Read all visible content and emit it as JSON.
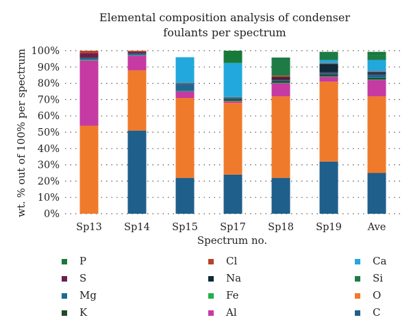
{
  "chart_data": {
    "type": "bar",
    "stacked": true,
    "title_lines": [
      "Elemental composition analysis of condenser",
      "foulants per spectrum"
    ],
    "xlabel": "Spectrum no.",
    "ylabel": "wt. % out of 100% per spectrum",
    "ylim": [
      0,
      100
    ],
    "yticks": [
      "0%",
      "10%",
      "20%",
      "30%",
      "40%",
      "50%",
      "60%",
      "70%",
      "80%",
      "90%",
      "100%"
    ],
    "grid": "horizontal-dotted",
    "legend_position": "bottom",
    "categories": [
      "Sp13",
      "Sp14",
      "Sp15",
      "Sp17",
      "Sp18",
      "Sp19",
      "Ave"
    ],
    "series": [
      {
        "name": "C",
        "color": "#1f5f8b",
        "values": [
          0,
          51,
          22,
          24,
          22,
          32,
          25
        ]
      },
      {
        "name": "O",
        "color": "#f07a2b",
        "values": [
          54,
          37,
          49,
          44,
          50,
          49,
          47
        ]
      },
      {
        "name": "Al",
        "color": "#c63aa3",
        "values": [
          40,
          9,
          4,
          1,
          8,
          3,
          10
        ]
      },
      {
        "name": "Fe",
        "color": "#21b14b",
        "values": [
          0.5,
          0.3,
          0.3,
          0.3,
          0.3,
          0.3,
          0.3
        ]
      },
      {
        "name": "K",
        "color": "#1c4a2a",
        "values": [
          0,
          0,
          0,
          1,
          1,
          1,
          1
        ]
      },
      {
        "name": "Mg",
        "color": "#1b6a93",
        "values": [
          1,
          1,
          4,
          1,
          0.5,
          1,
          2
        ]
      },
      {
        "name": "S",
        "color": "#6b1f4f",
        "values": [
          3,
          1,
          0.5,
          0,
          1,
          0.5,
          0.5
        ]
      },
      {
        "name": "Na",
        "color": "#0f2a38",
        "values": [
          0,
          0,
          0,
          0,
          1,
          5,
          1
        ]
      },
      {
        "name": "Cl",
        "color": "#b5452a",
        "values": [
          1.5,
          0.7,
          0.2,
          0.2,
          1,
          0.5,
          0.5
        ]
      },
      {
        "name": "Ca",
        "color": "#22a8dc",
        "values": [
          0,
          0,
          16,
          21,
          0,
          2,
          7
        ]
      },
      {
        "name": "Si",
        "color": "#1e7b45",
        "values": [
          0,
          0,
          0,
          0,
          11,
          5,
          3
        ]
      },
      {
        "name": "P",
        "color": "#177a3a",
        "values": [
          0,
          0,
          0,
          7.5,
          0,
          0,
          2
        ]
      }
    ],
    "legend_order": [
      "P",
      "Cl",
      "Ca",
      "S",
      "Na",
      "Si",
      "Mg",
      "Fe",
      "O",
      "K",
      "Al",
      "C"
    ]
  }
}
